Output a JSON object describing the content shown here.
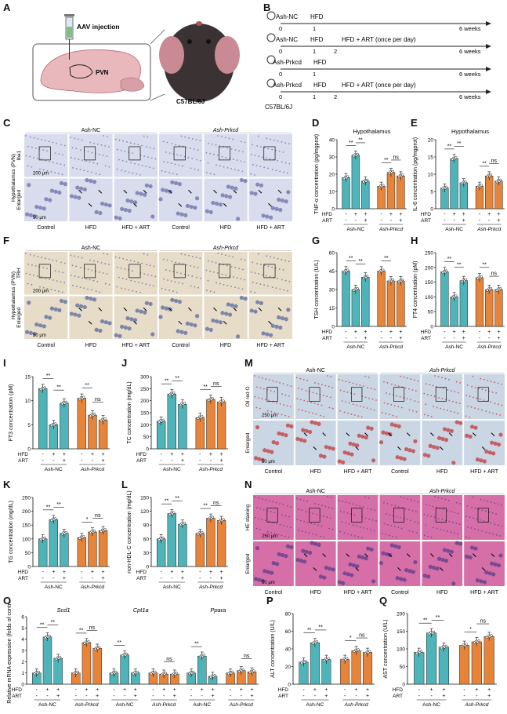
{
  "colors": {
    "teal": "#4fb4b9",
    "orange": "#e6853a",
    "micro_he": "#d66fa8",
    "micro_ihc": "#d9dcec",
    "micro_trh": "#e6dcc8",
    "micro_oil": "#cad6e4"
  },
  "panel_letters": {
    "A": "A",
    "B": "B",
    "C": "C",
    "D": "D",
    "E": "E",
    "F": "F",
    "G": "G",
    "H": "H",
    "I": "I",
    "J": "J",
    "K": "K",
    "L": "L",
    "M": "M",
    "N": "N",
    "O": "O",
    "P": "P",
    "Q": "Q"
  },
  "panelA": {
    "aav": "AAV injection",
    "pvn": "PVN",
    "mouse": "C57BL/6J"
  },
  "panelB": {
    "rows": [
      {
        "group": "Ash-NC",
        "diet": "HFD",
        "t0": "0",
        "t1": "1",
        "end": "6 weeks"
      },
      {
        "group": "Ash-NC",
        "diet": "HFD",
        "diet2": "HFD + ART (once per day)",
        "t0": "0",
        "t1": "1",
        "t2": "2",
        "end": "6 weeks"
      },
      {
        "group": "Ash-Prkcd",
        "diet": "HFD",
        "t0": "0",
        "t1": "1",
        "end": "6 weeks"
      },
      {
        "group": "Ash-Prkcd",
        "diet": "HFD",
        "diet2": "HFD + ART (once per day)",
        "t0": "0",
        "t1": "1",
        "t2": "2",
        "end": "6 weeks"
      }
    ],
    "strain": "C57BL/6J"
  },
  "micro_common": {
    "group_left": "Ash-NC",
    "group_right": "Ash-Prkcd",
    "conds": [
      "Control",
      "HFD",
      "HFD + ART",
      "Control",
      "HFD",
      "HFD + ART"
    ],
    "enlarged": "Enlarged"
  },
  "panelC": {
    "side": "Hypothalamus (PVN)",
    "stain": "Iba1",
    "scale1": "200 μm",
    "scale2": "50 μm"
  },
  "panelF": {
    "side": "Hypothalamus (PVN)",
    "stain": "TRH",
    "scale1": "200 μm",
    "scale2": "50 μm"
  },
  "panelM": {
    "stain": "Oil red O",
    "scale1": "250 μm",
    "scale2": "50 μm"
  },
  "panelN": {
    "stain": "HE staining",
    "scale1": "250 μm",
    "scale2": "50 μm"
  },
  "chart_common": {
    "hfd": "HFD",
    "art": "ART",
    "hfd_signs": [
      "-",
      "+",
      "+",
      "-",
      "+",
      "+"
    ],
    "art_signs": [
      "-",
      "-",
      "+",
      "-",
      "-",
      "+"
    ],
    "group_nc": "Ash-NC",
    "group_prkcd": "Ash-Prkcd"
  },
  "chart_data": [
    {
      "id": "D",
      "type": "bar",
      "title": "Hypothalamus",
      "ylabel": "TNF-α concentration (pg/mgprot)",
      "ylim": [
        0,
        40
      ],
      "ticks": [
        0,
        10,
        20,
        30,
        40
      ],
      "values": [
        18,
        31,
        16,
        13,
        21,
        19
      ],
      "sig": [
        [
          "**",
          0,
          1
        ],
        [
          "**",
          1,
          2
        ],
        [
          "**",
          3,
          4
        ],
        [
          "ns",
          4,
          5
        ]
      ]
    },
    {
      "id": "E",
      "type": "bar",
      "title": "Hypothalamus",
      "ylabel": "IL-6 concentration (pg/mgprot)",
      "ylim": [
        0,
        20
      ],
      "ticks": [
        0,
        5,
        10,
        15,
        20
      ],
      "values": [
        6,
        14.5,
        7.5,
        6.5,
        9.5,
        8
      ],
      "sig": [
        [
          "**",
          0,
          1
        ],
        [
          "**",
          1,
          2
        ],
        [
          "**",
          3,
          4
        ],
        [
          "ns",
          4,
          5
        ]
      ]
    },
    {
      "id": "G",
      "type": "bar",
      "ylabel": "TSH concentration (U/L)",
      "ylim": [
        0,
        60
      ],
      "ticks": [
        0,
        15,
        30,
        45,
        60
      ],
      "values": [
        45,
        30,
        40,
        45,
        37,
        37
      ],
      "sig": [
        [
          "**",
          0,
          1
        ],
        [
          "**",
          1,
          2
        ],
        [
          "**",
          3,
          4
        ]
      ]
    },
    {
      "id": "H",
      "type": "bar",
      "ylabel": "FT4 concentration (pM)",
      "ylim": [
        0,
        250
      ],
      "ticks": [
        0,
        50,
        100,
        150,
        200,
        250
      ],
      "values": [
        185,
        100,
        155,
        165,
        125,
        125
      ],
      "sig": [
        [
          "**",
          0,
          1
        ],
        [
          "**",
          1,
          2
        ],
        [
          "**",
          3,
          4
        ],
        [
          "ns",
          4,
          5
        ]
      ]
    },
    {
      "id": "I",
      "type": "bar",
      "ylabel": "FT3 concentration (pM)",
      "ylim": [
        0,
        15
      ],
      "ticks": [
        0,
        5,
        10,
        15
      ],
      "values": [
        12.5,
        5,
        9.5,
        10.5,
        7,
        6
      ],
      "sig": [
        [
          "**",
          0,
          1
        ],
        [
          "**",
          1,
          2
        ],
        [
          "**",
          3,
          4
        ],
        [
          "ns",
          4,
          5
        ]
      ]
    },
    {
      "id": "J",
      "type": "bar",
      "ylabel": "TC concentration (mg/dL)",
      "ylim": [
        0,
        300
      ],
      "ticks": [
        0,
        50,
        100,
        150,
        200,
        250,
        300
      ],
      "values": [
        115,
        228,
        185,
        130,
        205,
        195
      ],
      "sig": [
        [
          "**",
          0,
          1
        ],
        [
          "**",
          1,
          2
        ],
        [
          "**",
          3,
          4
        ],
        [
          "ns",
          4,
          5
        ]
      ]
    },
    {
      "id": "K",
      "type": "bar",
      "ylabel": "TG concentration (mg/dL)",
      "ylim": [
        0,
        250
      ],
      "ticks": [
        0,
        50,
        100,
        150,
        200,
        250
      ],
      "values": [
        100,
        170,
        120,
        105,
        125,
        130
      ],
      "sig": [
        [
          "**",
          0,
          1
        ],
        [
          "**",
          1,
          2
        ],
        [
          "*",
          3,
          4
        ],
        [
          "ns",
          4,
          5
        ]
      ]
    },
    {
      "id": "L",
      "type": "bar",
      "ylabel": "non-HDL-C concentration (mg/dL)",
      "ylim": [
        0,
        150
      ],
      "ticks": [
        0,
        30,
        60,
        90,
        120,
        150
      ],
      "values": [
        60,
        115,
        92,
        72,
        105,
        100
      ],
      "sig": [
        [
          "**",
          0,
          1
        ],
        [
          "**",
          1,
          2
        ],
        [
          "**",
          3,
          4
        ],
        [
          "ns",
          4,
          5
        ]
      ]
    },
    {
      "id": "O",
      "type": "bar",
      "ylabel": "Relative mRNA expression (folds of control)",
      "ylim": [
        0,
        6
      ],
      "ticks": [
        0,
        1,
        2,
        3,
        4,
        5,
        6
      ],
      "genes": [
        "Scd1",
        "Cpt1a",
        "Ppara"
      ],
      "values": [
        [
          1,
          4.2,
          2.3,
          1,
          3.7,
          3.2
        ],
        [
          1,
          2.6,
          1,
          1,
          0.9,
          0.9
        ],
        [
          1,
          2.5,
          0.7,
          1,
          1.2,
          1.1
        ]
      ],
      "sig": [
        [
          [
            "**",
            0,
            1
          ],
          [
            "**",
            1,
            2
          ],
          [
            "**",
            3,
            4
          ],
          [
            "ns",
            4,
            5
          ]
        ],
        [
          [
            "**",
            0,
            1
          ],
          [
            "ns",
            4,
            5
          ]
        ],
        [
          [
            "**",
            0,
            1
          ],
          [
            "ns",
            4,
            5
          ]
        ]
      ]
    },
    {
      "id": "P",
      "type": "bar",
      "ylabel": "ALT concentration (U/L)",
      "ylim": [
        0,
        80
      ],
      "ticks": [
        0,
        20,
        40,
        60,
        80
      ],
      "values": [
        25,
        47,
        28,
        28,
        38,
        36
      ],
      "sig": [
        [
          "**",
          0,
          1
        ],
        [
          "**",
          1,
          2
        ],
        [
          "*",
          3,
          4
        ],
        [
          "ns",
          4,
          5
        ]
      ]
    },
    {
      "id": "Q",
      "type": "bar",
      "ylabel": "AST concentration (U/L)",
      "ylim": [
        0,
        200
      ],
      "ticks": [
        0,
        50,
        100,
        150,
        200
      ],
      "values": [
        90,
        145,
        105,
        110,
        120,
        135
      ],
      "sig": [
        [
          "**",
          0,
          1
        ],
        [
          "**",
          1,
          2
        ],
        [
          "*",
          3,
          4
        ],
        [
          "ns",
          4,
          5
        ]
      ]
    }
  ]
}
